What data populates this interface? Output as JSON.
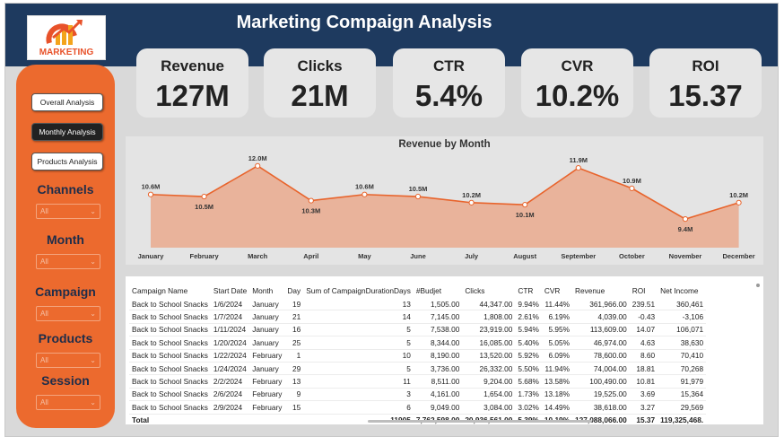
{
  "header": {
    "title": "Marketing Compaign Analysis",
    "logo_text": "MARKETING"
  },
  "nav": {
    "overall": "Overall Analysis",
    "monthly": "Monthly Analysis",
    "products": "Products Analysis"
  },
  "filters": [
    {
      "label": "Channels",
      "value": "All"
    },
    {
      "label": "Month",
      "value": "All"
    },
    {
      "label": "Campaign",
      "value": "All"
    },
    {
      "label": "Products",
      "value": "All"
    },
    {
      "label": "Session",
      "value": "All"
    }
  ],
  "kpis": [
    {
      "title": "Revenue",
      "value": "127M"
    },
    {
      "title": "Clicks",
      "value": "21M"
    },
    {
      "title": "CTR",
      "value": "5.4%"
    },
    {
      "title": "CVR",
      "value": "10.2%"
    },
    {
      "title": "ROI",
      "value": "15.37"
    }
  ],
  "chart_data": {
    "type": "area",
    "title": "Revenue by Month",
    "categories": [
      "January",
      "February",
      "March",
      "April",
      "May",
      "June",
      "July",
      "August",
      "September",
      "October",
      "November",
      "December"
    ],
    "values": [
      10.6,
      10.5,
      12.0,
      10.3,
      10.6,
      10.5,
      10.2,
      10.1,
      11.9,
      10.9,
      9.4,
      10.2
    ],
    "labels": [
      "10.6M",
      "10.5M",
      "12.0M",
      "10.3M",
      "10.6M",
      "10.5M",
      "10.2M",
      "10.1M",
      "11.9M",
      "10.9M",
      "9.4M",
      "10.2M"
    ],
    "ylim": [
      8,
      12.3
    ],
    "colors": {
      "line": "#e8642c",
      "fill": "#e9b39b",
      "point": "#ffffff"
    }
  },
  "table": {
    "columns": [
      "Campaign Name",
      "Start Date",
      "Month",
      "Day",
      "Sum of CampaignDurationDays",
      "#Budjet",
      "Clicks",
      "CTR",
      "CVR",
      "Revenue",
      "ROI",
      "Net Income"
    ],
    "rows": [
      [
        "Back to School Snacks",
        "1/6/2024",
        "January",
        "19",
        "13",
        "1,505.00",
        "44,347.00",
        "9.94%",
        "11.44%",
        "361,966.00",
        "239.51",
        "360,461"
      ],
      [
        "Back to School Snacks",
        "1/7/2024",
        "January",
        "21",
        "14",
        "7,145.00",
        "1,808.00",
        "2.61%",
        "6.19%",
        "4,039.00",
        "-0.43",
        "-3,106"
      ],
      [
        "Back to School Snacks",
        "1/11/2024",
        "January",
        "16",
        "5",
        "7,538.00",
        "23,919.00",
        "5.94%",
        "5.95%",
        "113,609.00",
        "14.07",
        "106,071"
      ],
      [
        "Back to School Snacks",
        "1/20/2024",
        "January",
        "25",
        "5",
        "8,344.00",
        "16,085.00",
        "5.40%",
        "5.05%",
        "46,974.00",
        "4.63",
        "38,630"
      ],
      [
        "Back to School Snacks",
        "1/22/2024",
        "February",
        "1",
        "10",
        "8,190.00",
        "13,520.00",
        "5.92%",
        "6.09%",
        "78,600.00",
        "8.60",
        "70,410"
      ],
      [
        "Back to School Snacks",
        "1/24/2024",
        "January",
        "29",
        "5",
        "3,736.00",
        "26,332.00",
        "5.50%",
        "11.94%",
        "74,004.00",
        "18.81",
        "70,268"
      ],
      [
        "Back to School Snacks",
        "2/2/2024",
        "February",
        "13",
        "11",
        "8,511.00",
        "9,204.00",
        "5.68%",
        "13.58%",
        "100,490.00",
        "10.81",
        "91,979"
      ],
      [
        "Back to School Snacks",
        "2/6/2024",
        "February",
        "9",
        "3",
        "4,161.00",
        "1,654.00",
        "1.73%",
        "13.18%",
        "19,525.00",
        "3.69",
        "15,364"
      ],
      [
        "Back to School Snacks",
        "2/9/2024",
        "February",
        "15",
        "6",
        "9,049.00",
        "3,084.00",
        "3.02%",
        "14.49%",
        "38,618.00",
        "3.27",
        "29,569"
      ]
    ],
    "total": [
      "Total",
      "",
      "",
      "",
      "11905",
      "7,762,598.00",
      "20,936,561.00",
      "5.39%",
      "10.19%",
      "127,088,066.00",
      "15.37",
      "119,325,468."
    ]
  }
}
